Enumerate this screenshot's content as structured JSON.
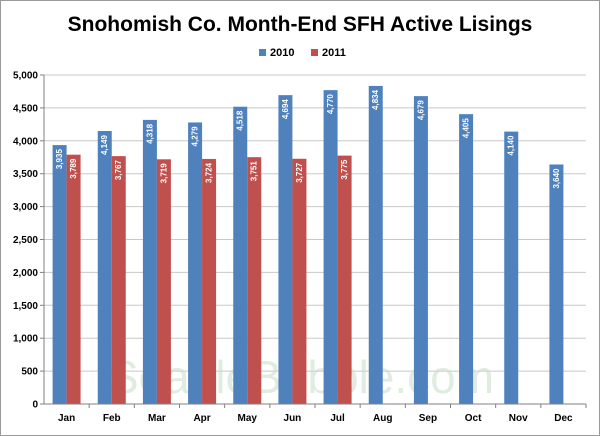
{
  "chart_data": {
    "type": "bar",
    "title": "Snohomish Co. Month-End SFH Active Lisings",
    "categories": [
      "Jan",
      "Feb",
      "Mar",
      "Apr",
      "May",
      "Jun",
      "Jul",
      "Aug",
      "Sep",
      "Oct",
      "Nov",
      "Dec"
    ],
    "series": [
      {
        "name": "2010",
        "color": "#4f81bd",
        "values": [
          3935,
          4149,
          4318,
          4279,
          4518,
          4694,
          4770,
          4834,
          4679,
          4405,
          4140,
          3640
        ],
        "labels": [
          "3,935",
          "4,149",
          "4,318",
          "4,279",
          "4,518",
          "4,694",
          "4,770",
          "4,834",
          "4,679",
          "4,405",
          "4,140",
          "3,640"
        ]
      },
      {
        "name": "2011",
        "color": "#c0504d",
        "values": [
          3789,
          3767,
          3719,
          3724,
          3751,
          3727,
          3775,
          null,
          null,
          null,
          null,
          null
        ],
        "labels": [
          "3,789",
          "3,767",
          "3,719",
          "3,724",
          "3,751",
          "3,727",
          "3,775",
          null,
          null,
          null,
          null,
          null
        ]
      }
    ],
    "ylim": [
      0,
      5000
    ],
    "yticks": [
      0,
      500,
      1000,
      1500,
      2000,
      2500,
      3000,
      3500,
      4000,
      4500,
      5000
    ],
    "ytick_labels": [
      "0",
      "500",
      "1,000",
      "1,500",
      "2,000",
      "2,500",
      "3,000",
      "3,500",
      "4,000",
      "4,500",
      "5,000"
    ],
    "xlabel": "",
    "ylabel": "",
    "grid": true,
    "legend_position": "top-center",
    "watermark": "SeattleBubble.com"
  }
}
